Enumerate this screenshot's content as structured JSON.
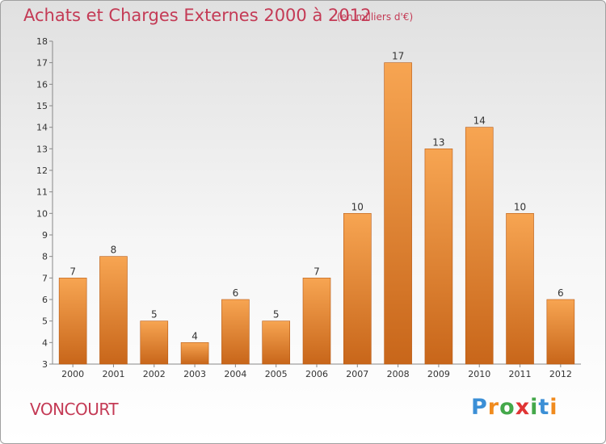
{
  "header": {
    "title": "Achats et Charges Externes 2000 à 2012",
    "subtitle": "(en milliers d'€)"
  },
  "footer": {
    "commune": "VONCOURT",
    "logo": {
      "letters": [
        "P",
        "r",
        "o",
        "x",
        "i",
        "t",
        "i"
      ],
      "colors": [
        "#3b8fd6",
        "#f08b1e",
        "#44a84a",
        "#e03434",
        "#44a84a",
        "#3b8fd6",
        "#f08b1e"
      ]
    }
  },
  "chart_data": {
    "type": "bar",
    "categories": [
      "2000",
      "2001",
      "2002",
      "2003",
      "2004",
      "2005",
      "2006",
      "2007",
      "2008",
      "2009",
      "2010",
      "2011",
      "2012"
    ],
    "values": [
      7,
      8,
      5,
      4,
      6,
      5,
      7,
      10,
      17,
      13,
      14,
      10,
      6
    ],
    "data_labels": [
      "7",
      "8",
      "5",
      "4",
      "6",
      "5",
      "7",
      "10",
      "17",
      "13",
      "14",
      "10",
      "6"
    ],
    "ylim": [
      3,
      18
    ],
    "yticks": [
      3,
      4,
      5,
      6,
      7,
      8,
      9,
      10,
      11,
      12,
      13,
      14,
      15,
      16,
      17,
      18
    ],
    "title": "Achats et Charges Externes 2000 à 2012",
    "xlabel": "",
    "ylabel": "",
    "grid": false,
    "bar_color_top": "#f7a552",
    "bar_color_bottom": "#c8661a"
  }
}
